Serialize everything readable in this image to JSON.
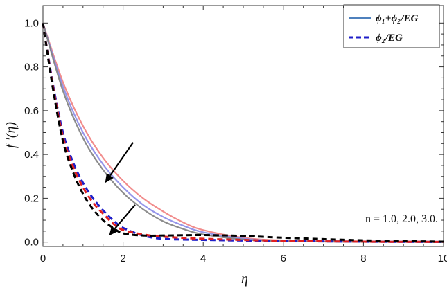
{
  "chart_data": {
    "type": "line",
    "xlabel": "η",
    "ylabel": "f ′(η)",
    "xlim": [
      0,
      10
    ],
    "ylim": [
      -0.02,
      1.08
    ],
    "x_ticks": [
      0,
      2,
      4,
      6,
      8,
      10
    ],
    "y_ticks": [
      0.0,
      0.2,
      0.4,
      0.6,
      0.8,
      1.0
    ],
    "x_tick_labels": [
      "0",
      "2",
      "4",
      "6",
      "8",
      "10"
    ],
    "y_tick_labels": [
      "0.0",
      "0.2",
      "0.4",
      "0.6",
      "0.8",
      "1.0"
    ],
    "grid": false,
    "legend": {
      "placement": "top-right",
      "entries": [
        {
          "label": "ϕ₁+ϕ₂/EG",
          "style": "solid",
          "color": "#4f81bd"
        },
        {
          "label": "ϕ₂/EG",
          "style": "dashed",
          "color": "#1f1fc8"
        }
      ]
    },
    "annotation": "n = 1.0, 2.0, 3.0.",
    "series": [
      {
        "group": "hybrid",
        "style": "solid",
        "color": "#f08080",
        "x": [
          0,
          0.5,
          1,
          1.5,
          2,
          2.5,
          3,
          3.5,
          4,
          5,
          6,
          8,
          10
        ],
        "y": [
          1.0,
          0.73,
          0.53,
          0.385,
          0.28,
          0.2,
          0.14,
          0.09,
          0.055,
          0.02,
          0.008,
          0.002,
          0.0
        ]
      },
      {
        "group": "hybrid",
        "style": "solid",
        "color": "#8a8ae8",
        "x": [
          0,
          0.5,
          1,
          1.5,
          2,
          2.5,
          3,
          3.5,
          4,
          5,
          6,
          8,
          10
        ],
        "y": [
          1.0,
          0.71,
          0.5,
          0.355,
          0.25,
          0.17,
          0.115,
          0.075,
          0.045,
          0.016,
          0.006,
          0.001,
          0.0
        ]
      },
      {
        "group": "hybrid",
        "style": "solid",
        "color": "#808080",
        "x": [
          0,
          0.5,
          1,
          1.5,
          2,
          2.5,
          3,
          3.5,
          4,
          5,
          6,
          8,
          10
        ],
        "y": [
          1.0,
          0.69,
          0.475,
          0.33,
          0.225,
          0.15,
          0.095,
          0.06,
          0.035,
          0.012,
          0.004,
          0.001,
          0.0
        ]
      },
      {
        "group": "mono",
        "style": "dashed",
        "color": "#1f1fc8",
        "x": [
          0,
          0.25,
          0.5,
          0.75,
          1,
          1.25,
          1.5,
          1.75,
          2,
          2.5,
          3,
          4,
          6,
          8,
          10
        ],
        "y": [
          1.0,
          0.72,
          0.5,
          0.365,
          0.27,
          0.2,
          0.145,
          0.1,
          0.065,
          0.03,
          0.015,
          0.01,
          0.005,
          0.002,
          0.001
        ]
      },
      {
        "group": "mono",
        "style": "dashed",
        "color": "#e02020",
        "x": [
          0,
          0.25,
          0.5,
          0.75,
          1,
          1.25,
          1.5,
          1.75,
          2,
          2.5,
          3,
          4,
          6,
          8,
          10
        ],
        "y": [
          1.0,
          0.71,
          0.48,
          0.345,
          0.25,
          0.18,
          0.13,
          0.085,
          0.055,
          0.035,
          0.025,
          0.015,
          0.006,
          0.002,
          0.001
        ]
      },
      {
        "group": "mono",
        "style": "dashed",
        "color": "#000000",
        "x": [
          0,
          0.25,
          0.5,
          0.75,
          1,
          1.25,
          1.5,
          1.75,
          2,
          2.5,
          3,
          4,
          5,
          6,
          8,
          10
        ],
        "y": [
          1.0,
          0.7,
          0.46,
          0.32,
          0.22,
          0.15,
          0.1,
          0.065,
          0.04,
          0.03,
          0.03,
          0.032,
          0.028,
          0.02,
          0.008,
          0.002
        ]
      }
    ],
    "arrows": [
      {
        "from": [
          2.25,
          0.455
        ],
        "to": [
          1.55,
          0.27
        ]
      },
      {
        "from": [
          2.3,
          0.17
        ],
        "to": [
          1.65,
          0.03
        ]
      }
    ]
  }
}
